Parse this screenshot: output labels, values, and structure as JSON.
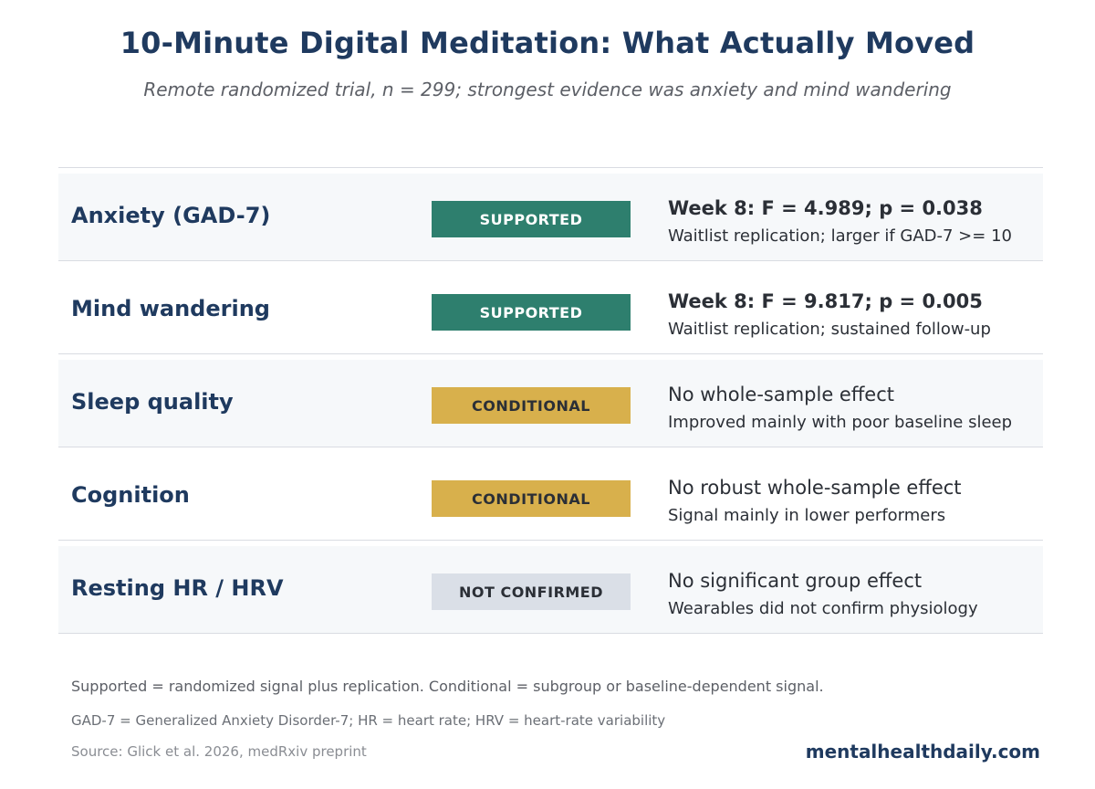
{
  "header": {
    "title": "10-Minute Digital Meditation: What Actually Moved",
    "subtitle": "Remote randomized trial, n = 299; strongest evidence was anxiety and mind wandering"
  },
  "rows": [
    {
      "outcome": "Anxiety (GAD-7)",
      "status": "SUPPORTED",
      "status_color": "#2e7f6e",
      "stat": "Week 8: F = 4.989; p = 0.038",
      "note": "Waitlist replication; larger if GAD-7 >= 10"
    },
    {
      "outcome": "Mind wandering",
      "status": "SUPPORTED",
      "status_color": "#2e7f6e",
      "stat": "Week 8: F = 9.817; p = 0.005",
      "note": "Waitlist replication; sustained follow-up"
    },
    {
      "outcome": "Sleep quality",
      "status": "CONDITIONAL",
      "status_color": "#d8b04c",
      "stat": "No whole-sample effect",
      "note": "Improved mainly with poor baseline sleep"
    },
    {
      "outcome": "Cognition",
      "status": "CONDITIONAL",
      "status_color": "#d8b04c",
      "stat": "No robust whole-sample effect",
      "note": "Signal mainly in lower performers"
    },
    {
      "outcome": "Resting HR / HRV",
      "status": "NOT CONFIRMED",
      "status_color": "#dadfe7",
      "stat": "No significant group effect",
      "note": "Wearables did not confirm physiology"
    }
  ],
  "footer": {
    "legend": "Supported = randomized signal plus replication. Conditional = subgroup or baseline-dependent signal.",
    "abbreviations": "GAD-7 = Generalized Anxiety Disorder-7; HR = heart rate; HRV = heart-rate variability",
    "source": "Source: Glick et al. 2026, medRxiv preprint",
    "brand": "mentalhealthdaily.com"
  }
}
